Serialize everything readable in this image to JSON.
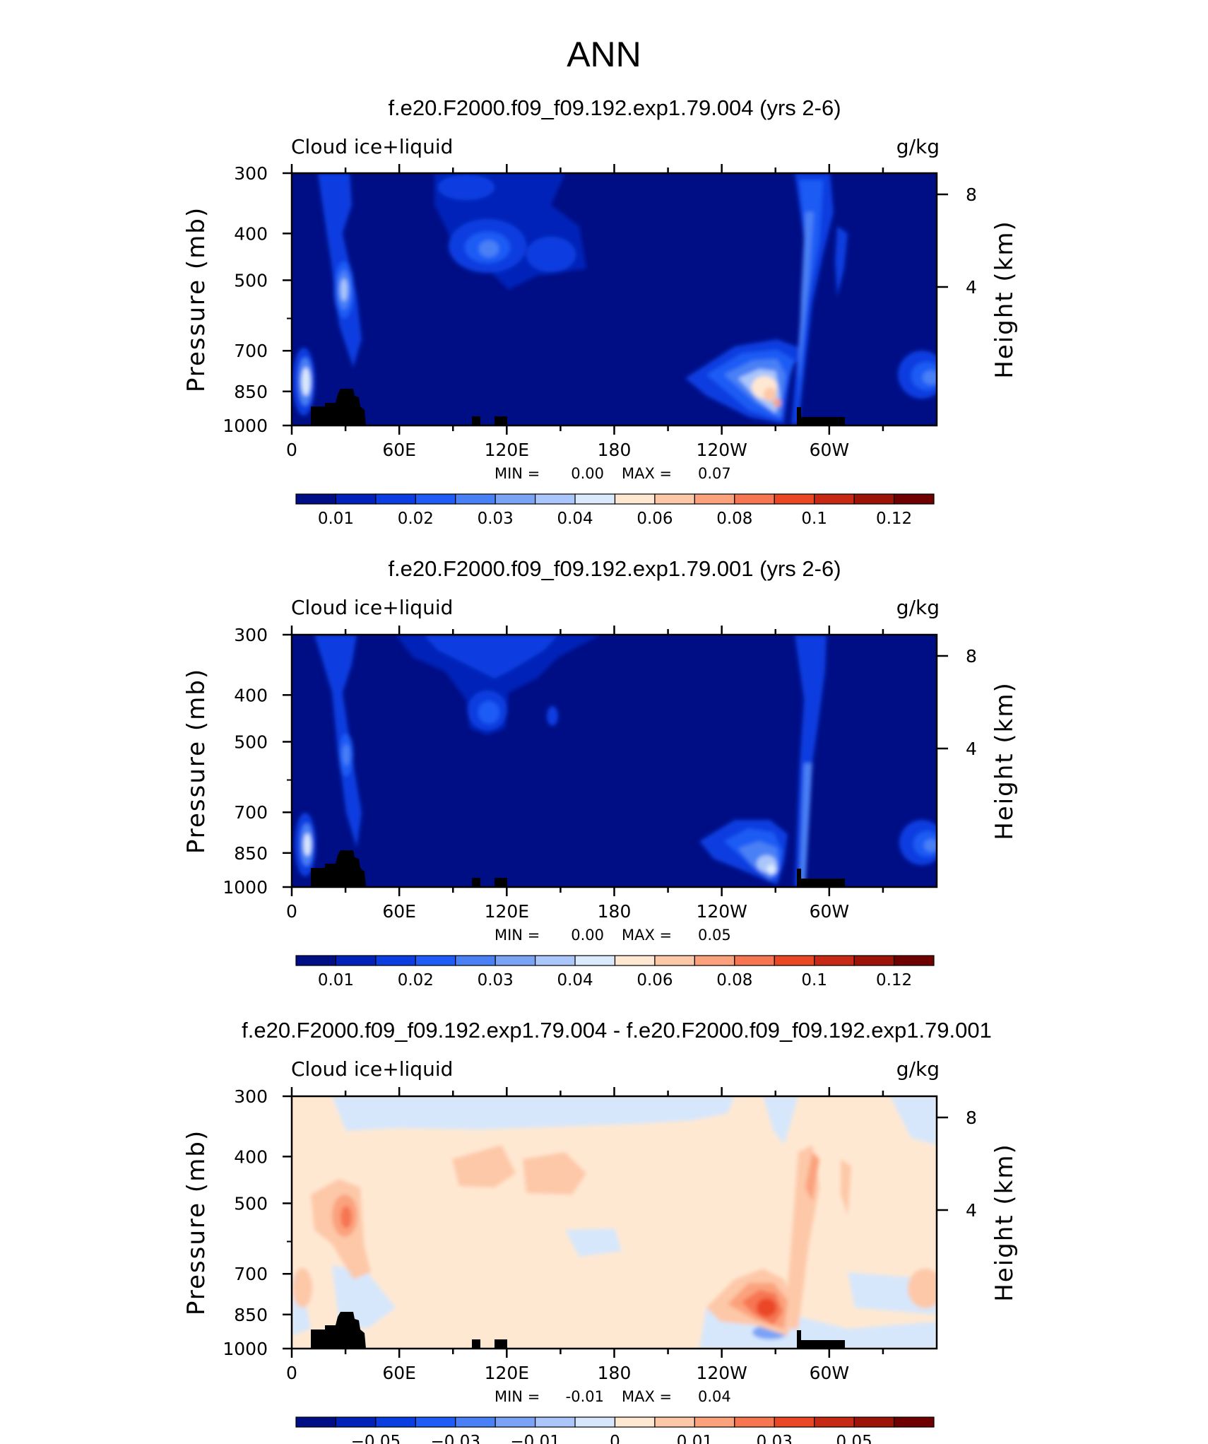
{
  "page": {
    "title": "ANN"
  },
  "panels": [
    {
      "title": "f.e20.F2000.f09_f09.192.exp1.79.004 (yrs 2-6)",
      "variable": "Cloud ice+liquid",
      "units": "g/kg",
      "ylabel": "Pressure (mb)",
      "ylabel_right": "Height (km)",
      "minmax": {
        "min_label": "MIN =",
        "min_value": "0.00",
        "max_label": "MAX =",
        "max_value": "0.07"
      },
      "colorbar_labels": [
        "0.01",
        "0.02",
        "0.03",
        "0.04",
        "0.06",
        "0.08",
        "0.1",
        "0.12"
      ]
    },
    {
      "title": "f.e20.F2000.f09_f09.192.exp1.79.001 (yrs 2-6)",
      "variable": "Cloud ice+liquid",
      "units": "g/kg",
      "ylabel": "Pressure (mb)",
      "ylabel_right": "Height (km)",
      "minmax": {
        "min_label": "MIN =",
        "min_value": "0.00",
        "max_label": "MAX =",
        "max_value": "0.05"
      },
      "colorbar_labels": [
        "0.01",
        "0.02",
        "0.03",
        "0.04",
        "0.06",
        "0.08",
        "0.1",
        "0.12"
      ]
    },
    {
      "title": "f.e20.F2000.f09_f09.192.exp1.79.004 - f.e20.F2000.f09_f09.192.exp1.79.001",
      "variable": "Cloud ice+liquid",
      "units": "g/kg",
      "ylabel": "Pressure (mb)",
      "ylabel_right": "Height (km)",
      "minmax": {
        "min_label": "MIN =",
        "min_value": "-0.01",
        "max_label": "MAX =",
        "max_value": "0.04"
      },
      "colorbar_labels": [
        "−0.05",
        "−0.03",
        "−0.01",
        "0",
        "0.01",
        "0.03",
        "0.05"
      ]
    }
  ],
  "colors": {
    "full_palette": [
      "#000e86",
      "#0022b8",
      "#0a3ee0",
      "#1f5cf5",
      "#4a80f5",
      "#7aa3f5",
      "#aac6fa",
      "#dae9fc",
      "#ffe8d2",
      "#fdc8a8",
      "#fba27d",
      "#f67652",
      "#ea4725",
      "#c62a14",
      "#9c1408",
      "#6e0000"
    ],
    "diff_palette": [
      "#000e86",
      "#0022b8",
      "#0a3ee0",
      "#1f5cf5",
      "#4a80f5",
      "#7aa3f5",
      "#aac6fa",
      "#d6e7fc",
      "#ffe8d2",
      "#fdc8a8",
      "#fba27d",
      "#f67652",
      "#ea4725",
      "#c62a14",
      "#9c1408",
      "#6e0000"
    ],
    "terrain": "#000000"
  },
  "chart_data": [
    {
      "type": "heatmap",
      "title": "f.e20.F2000.f09_f09.192.exp1.79.004 (yrs 2-6)",
      "variable": "Cloud ice+liquid",
      "units": "g/kg",
      "x": {
        "ticks": [
          "0",
          "60E",
          "120E",
          "180",
          "120W",
          "60W"
        ],
        "range_deg": [
          0,
          360
        ]
      },
      "y": {
        "label": "Pressure (mb)",
        "ticks": [
          300,
          400,
          500,
          700,
          850,
          1000
        ],
        "range": [
          300,
          1000
        ],
        "scale": "log"
      },
      "y_right": {
        "label": "Height (km)",
        "ticks": [
          8,
          4
        ]
      },
      "contour_levels": [
        0.01,
        0.02,
        0.03,
        0.04,
        0.06,
        0.08,
        0.1,
        0.12
      ],
      "min": 0.0,
      "max": 0.07,
      "features": [
        {
          "lon": 10,
          "p": 850,
          "value": 0.035
        },
        {
          "lon": 30,
          "p": 650,
          "value": 0.04
        },
        {
          "lon": 105,
          "p": 510,
          "value": 0.025
        },
        {
          "lon": 272,
          "p": 900,
          "value": 0.07
        },
        {
          "lon": 350,
          "p": 860,
          "value": 0.03
        }
      ]
    },
    {
      "type": "heatmap",
      "title": "f.e20.F2000.f09_f09.192.exp1.79.001 (yrs 2-6)",
      "variable": "Cloud ice+liquid",
      "units": "g/kg",
      "x": {
        "ticks": [
          "0",
          "60E",
          "120E",
          "180",
          "120W",
          "60W"
        ],
        "range_deg": [
          0,
          360
        ]
      },
      "y": {
        "label": "Pressure (mb)",
        "ticks": [
          300,
          400,
          500,
          700,
          850,
          1000
        ],
        "range": [
          300,
          1000
        ],
        "scale": "log"
      },
      "y_right": {
        "label": "Height (km)",
        "ticks": [
          8,
          4
        ]
      },
      "contour_levels": [
        0.01,
        0.02,
        0.03,
        0.04,
        0.06,
        0.08,
        0.1,
        0.12
      ],
      "min": 0.0,
      "max": 0.05,
      "features": [
        {
          "lon": 10,
          "p": 850,
          "value": 0.035
        },
        {
          "lon": 30,
          "p": 650,
          "value": 0.025
        },
        {
          "lon": 105,
          "p": 510,
          "value": 0.02
        },
        {
          "lon": 272,
          "p": 920,
          "value": 0.05
        },
        {
          "lon": 350,
          "p": 860,
          "value": 0.03
        }
      ]
    },
    {
      "type": "heatmap",
      "title": "f.e20.F2000.f09_f09.192.exp1.79.004 - f.e20.F2000.f09_f09.192.exp1.79.001",
      "variable": "Cloud ice+liquid",
      "units": "g/kg",
      "x": {
        "ticks": [
          "0",
          "60E",
          "120E",
          "180",
          "120W",
          "60W"
        ],
        "range_deg": [
          0,
          360
        ]
      },
      "y": {
        "label": "Pressure (mb)",
        "ticks": [
          300,
          400,
          500,
          700,
          850,
          1000
        ],
        "range": [
          300,
          1000
        ],
        "scale": "log"
      },
      "y_right": {
        "label": "Height (km)",
        "ticks": [
          8,
          4
        ]
      },
      "contour_levels": [
        -0.05,
        -0.03,
        -0.01,
        0,
        0.01,
        0.03,
        0.05
      ],
      "min": -0.01,
      "max": 0.04,
      "features": [
        {
          "lon": 30,
          "p": 620,
          "value": 0.01
        },
        {
          "lon": 105,
          "p": 510,
          "value": 0.005
        },
        {
          "lon": 272,
          "p": 880,
          "value": 0.04
        },
        {
          "lon": 350,
          "p": 820,
          "value": 0.005
        }
      ]
    }
  ]
}
